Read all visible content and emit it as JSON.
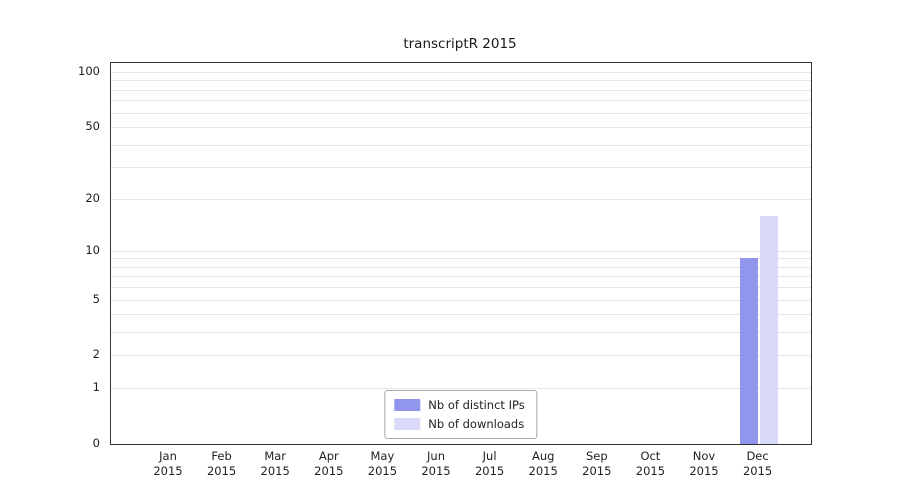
{
  "chart_data": {
    "type": "bar",
    "title": "transcriptR 2015",
    "year": "2015",
    "categories": [
      "Jan",
      "Feb",
      "Mar",
      "Apr",
      "May",
      "Jun",
      "Jul",
      "Aug",
      "Sep",
      "Oct",
      "Nov",
      "Dec"
    ],
    "series": [
      {
        "name": "Nb of distinct IPs",
        "color": "#9295ec",
        "values": [
          0,
          0,
          0,
          0,
          0,
          0,
          0,
          0,
          0,
          0,
          0,
          9
        ]
      },
      {
        "name": "Nb of downloads",
        "color": "#d9daf8",
        "values": [
          0,
          0,
          0,
          0,
          0,
          0,
          0,
          0,
          0,
          0,
          0,
          16
        ]
      }
    ],
    "yticks": [
      0,
      1,
      2,
      5,
      10,
      20,
      50,
      100
    ],
    "minor_gridlines": [
      1,
      2,
      3,
      4,
      5,
      6,
      7,
      8,
      9,
      10,
      20,
      30,
      40,
      50,
      60,
      70,
      80,
      90,
      100
    ],
    "scale": "log1p",
    "ylim": [
      0,
      100
    ],
    "grid": true,
    "legend_position": "bottom-center",
    "xlabel": "",
    "ylabel": ""
  }
}
